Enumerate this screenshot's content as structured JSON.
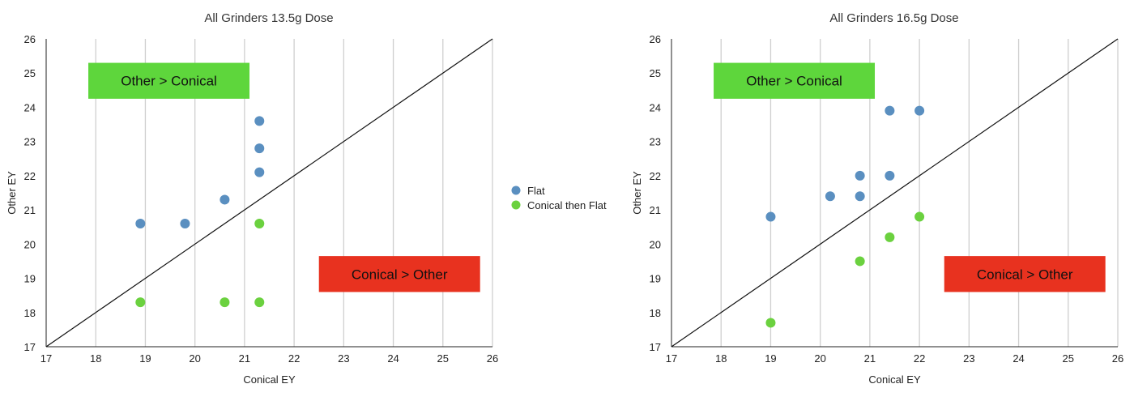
{
  "chart_data": [
    {
      "type": "scatter",
      "title": "All Grinders 13.5g Dose",
      "xlabel": "Conical EY",
      "ylabel": "Other EY",
      "xlim": [
        17,
        26
      ],
      "ylim": [
        17,
        26
      ],
      "x_ticks": [
        "17",
        "18",
        "19",
        "20",
        "21",
        "22",
        "23",
        "24",
        "25",
        "26"
      ],
      "y_ticks": [
        "17",
        "18",
        "19",
        "20",
        "21",
        "22",
        "23",
        "24",
        "25",
        "26"
      ],
      "grid": "vertical",
      "diagonal": [
        [
          17,
          17
        ],
        [
          26,
          26
        ]
      ],
      "annotations": [
        {
          "text": "Other > Conical",
          "color": "#5ed63c",
          "text_color": "#111111",
          "x0": 17.85,
          "x1": 21.1,
          "y0": 24.25,
          "y1": 25.3
        },
        {
          "text": "Conical > Other",
          "color": "#e8321f",
          "text_color": "#ffffff",
          "x0": 22.5,
          "x1": 25.75,
          "y0": 18.6,
          "y1": 19.65
        }
      ],
      "series": [
        {
          "name": "Flat",
          "color": "#5a8fc0",
          "points": [
            [
              18.9,
              20.6
            ],
            [
              19.8,
              20.6
            ],
            [
              20.6,
              21.3
            ],
            [
              21.3,
              22.1
            ],
            [
              21.3,
              22.8
            ],
            [
              21.3,
              23.6
            ]
          ]
        },
        {
          "name": "Conical then Flat",
          "color": "#6bd13f",
          "points": [
            [
              18.9,
              18.3
            ],
            [
              20.6,
              18.3
            ],
            [
              21.3,
              18.3
            ],
            [
              21.3,
              20.6
            ]
          ]
        }
      ]
    },
    {
      "type": "scatter",
      "title": "All Grinders 16.5g Dose",
      "xlabel": "Conical EY",
      "ylabel": "Other EY",
      "xlim": [
        17,
        26
      ],
      "ylim": [
        17,
        26
      ],
      "x_ticks": [
        "17",
        "18",
        "19",
        "20",
        "21",
        "22",
        "23",
        "24",
        "25",
        "26"
      ],
      "y_ticks": [
        "17",
        "18",
        "19",
        "20",
        "21",
        "22",
        "23",
        "24",
        "25",
        "26"
      ],
      "grid": "vertical",
      "diagonal": [
        [
          17,
          17
        ],
        [
          26,
          26
        ]
      ],
      "annotations": [
        {
          "text": "Other > Conical",
          "color": "#5ed63c",
          "text_color": "#111111",
          "x0": 17.85,
          "x1": 21.1,
          "y0": 24.25,
          "y1": 25.3
        },
        {
          "text": "Conical > Other",
          "color": "#e8321f",
          "text_color": "#ffffff",
          "x0": 22.5,
          "x1": 25.75,
          "y0": 18.6,
          "y1": 19.65
        }
      ],
      "series": [
        {
          "name": "Flat",
          "color": "#5a8fc0",
          "points": [
            [
              19.0,
              20.8
            ],
            [
              20.2,
              21.4
            ],
            [
              20.8,
              21.4
            ],
            [
              20.8,
              22.0
            ],
            [
              21.4,
              22.0
            ],
            [
              21.4,
              23.9
            ],
            [
              22.0,
              23.9
            ]
          ]
        },
        {
          "name": "Conical then Flat",
          "color": "#6bd13f",
          "points": [
            [
              19.0,
              17.7
            ],
            [
              20.8,
              19.5
            ],
            [
              21.4,
              20.2
            ],
            [
              22.0,
              20.8
            ]
          ]
        }
      ]
    }
  ],
  "legend": {
    "position": "center",
    "items": [
      {
        "label": "Flat",
        "color": "#5a8fc0"
      },
      {
        "label": "Conical then Flat",
        "color": "#6bd13f"
      }
    ]
  }
}
